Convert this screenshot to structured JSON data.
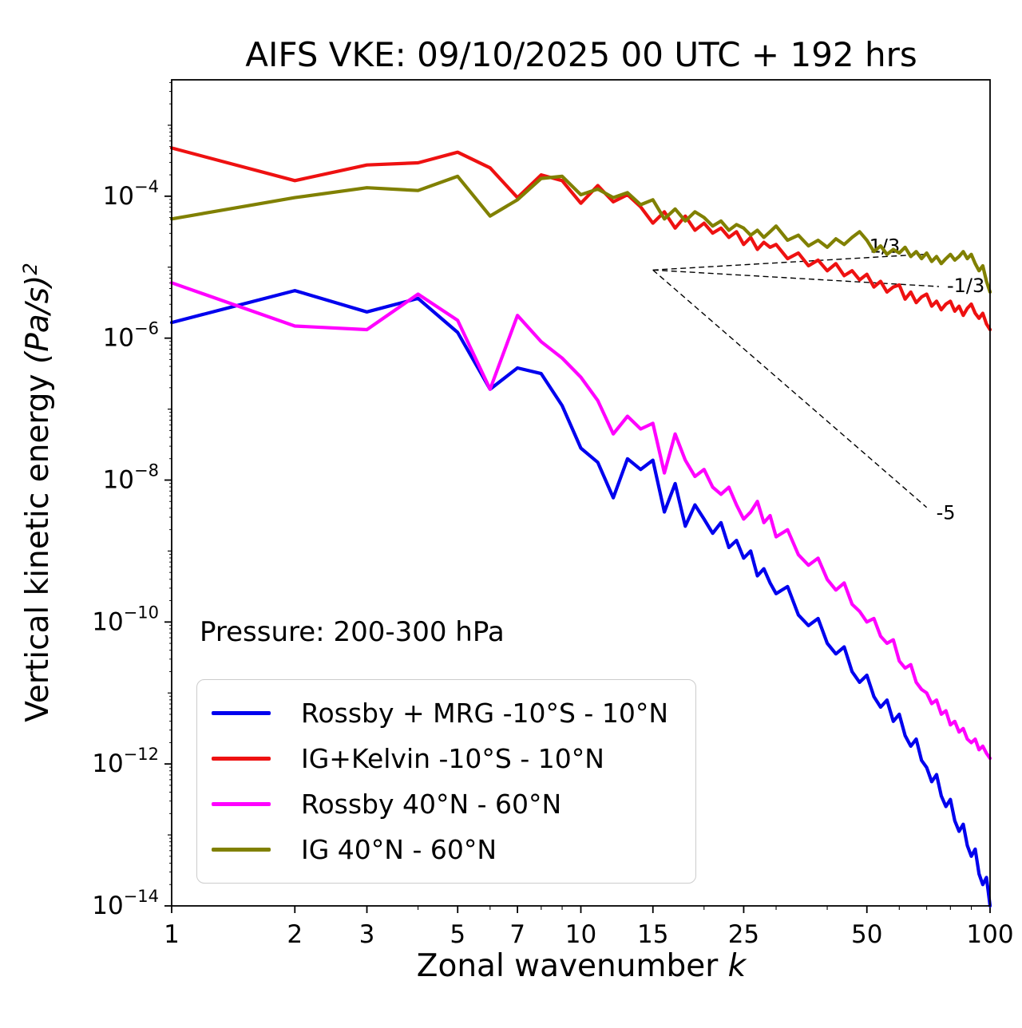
{
  "annotations": {
    "pressure": "Pressure: 200-300 hPa"
  },
  "chart_data": {
    "type": "line",
    "title": "AIFS VKE: 09/10/2025 00 UTC + 192 hrs",
    "xlabel": "Zonal wavenumber k",
    "xlabel_prefix": "Zonal wavenumber ",
    "xlabel_var": "k",
    "ylabel": "Vertical kinetic energy (Pa/s)^2",
    "ylabel_prefix": "Vertical kinetic energy ",
    "ylabel_units": "(Pa/s)",
    "ylabel_exponent": "2",
    "x_scale": "log",
    "y_scale": "log",
    "grid": false,
    "legend_position": "lower left",
    "xlim": [
      1,
      100
    ],
    "ylim_log10": [
      -14,
      -2.36
    ],
    "x_ticks": [
      1,
      2,
      3,
      5,
      7,
      10,
      15,
      25,
      50,
      100
    ],
    "y_ticks_log10": [
      -4,
      -6,
      -8,
      -10,
      -12,
      -14
    ],
    "k": [
      1,
      2,
      3,
      4,
      5,
      6,
      7,
      8,
      9,
      10,
      11,
      12,
      13,
      14,
      15,
      16,
      17,
      18,
      19,
      20,
      21,
      22,
      23,
      24,
      25,
      26,
      27,
      28,
      29,
      30,
      32,
      34,
      36,
      38,
      40,
      42,
      44,
      46,
      48,
      50,
      52,
      54,
      56,
      58,
      60,
      62,
      64,
      66,
      68,
      70,
      72,
      74,
      76,
      78,
      80,
      82,
      84,
      86,
      88,
      90,
      92,
      94,
      96,
      98,
      100
    ],
    "series": [
      {
        "key": "rossby-mrg-tropics",
        "name": "Rossby + MRG -10°S - 10°N",
        "color": "#0000ee",
        "log10_values": [
          -5.78,
          -5.33,
          -5.63,
          -5.44,
          -5.92,
          -6.72,
          -6.42,
          -6.5,
          -6.95,
          -7.55,
          -7.75,
          -8.25,
          -7.7,
          -7.85,
          -7.72,
          -8.45,
          -8.05,
          -8.65,
          -8.35,
          -8.55,
          -8.75,
          -8.6,
          -8.95,
          -8.85,
          -9.1,
          -9.0,
          -9.35,
          -9.25,
          -9.45,
          -9.6,
          -9.5,
          -9.9,
          -10.05,
          -9.95,
          -10.3,
          -10.45,
          -10.35,
          -10.7,
          -10.85,
          -10.75,
          -11.05,
          -11.2,
          -11.1,
          -11.4,
          -11.3,
          -11.6,
          -11.75,
          -11.65,
          -11.95,
          -12.05,
          -12.25,
          -12.15,
          -12.45,
          -12.6,
          -12.5,
          -12.8,
          -12.95,
          -12.85,
          -13.15,
          -13.3,
          -13.2,
          -13.55,
          -13.7,
          -13.6,
          -14.0
        ]
      },
      {
        "key": "ig-kelvin-tropics",
        "name": "IG+Kelvin -10°S - 10°N",
        "color": "#ee1111",
        "log10_values": [
          -3.32,
          -3.78,
          -3.56,
          -3.53,
          -3.38,
          -3.6,
          -4.02,
          -3.7,
          -3.78,
          -4.1,
          -3.85,
          -4.08,
          -3.98,
          -4.15,
          -4.38,
          -4.22,
          -4.45,
          -4.28,
          -4.48,
          -4.38,
          -4.52,
          -4.45,
          -4.58,
          -4.5,
          -4.68,
          -4.58,
          -4.75,
          -4.65,
          -4.72,
          -4.68,
          -4.88,
          -4.8,
          -4.98,
          -4.9,
          -5.05,
          -4.95,
          -5.12,
          -5.05,
          -5.18,
          -5.1,
          -5.28,
          -5.2,
          -5.35,
          -5.28,
          -5.25,
          -5.45,
          -5.35,
          -5.5,
          -5.42,
          -5.38,
          -5.55,
          -5.48,
          -5.6,
          -5.52,
          -5.48,
          -5.62,
          -5.55,
          -5.68,
          -5.58,
          -5.52,
          -5.65,
          -5.72,
          -5.65,
          -5.8,
          -5.88
        ]
      },
      {
        "key": "rossby-midlat",
        "name": "Rossby 40°N - 60°N",
        "color": "#ff00ff",
        "log10_values": [
          -5.22,
          -5.83,
          -5.88,
          -5.38,
          -5.75,
          -6.72,
          -5.68,
          -6.05,
          -6.28,
          -6.55,
          -6.88,
          -7.35,
          -7.1,
          -7.28,
          -7.2,
          -7.9,
          -7.35,
          -7.72,
          -7.95,
          -7.85,
          -8.1,
          -8.2,
          -8.1,
          -8.35,
          -8.55,
          -8.45,
          -8.3,
          -8.6,
          -8.5,
          -8.8,
          -8.7,
          -9.05,
          -9.2,
          -9.1,
          -9.4,
          -9.55,
          -9.45,
          -9.75,
          -9.85,
          -10.0,
          -9.95,
          -10.2,
          -10.3,
          -10.25,
          -10.55,
          -10.65,
          -10.6,
          -10.85,
          -10.95,
          -11.0,
          -11.15,
          -11.1,
          -11.3,
          -11.25,
          -11.45,
          -11.4,
          -11.55,
          -11.5,
          -11.65,
          -11.7,
          -11.65,
          -11.8,
          -11.75,
          -11.85,
          -11.92
        ]
      },
      {
        "key": "ig-midlat",
        "name": "IG 40°N - 60°N",
        "color": "#808000",
        "log10_values": [
          -4.32,
          -4.02,
          -3.88,
          -3.92,
          -3.72,
          -4.28,
          -4.05,
          -3.75,
          -3.72,
          -3.98,
          -3.9,
          -4.02,
          -3.95,
          -4.12,
          -4.05,
          -4.32,
          -4.18,
          -4.35,
          -4.22,
          -4.3,
          -4.42,
          -4.35,
          -4.48,
          -4.4,
          -4.45,
          -4.55,
          -4.48,
          -4.58,
          -4.5,
          -4.42,
          -4.62,
          -4.55,
          -4.7,
          -4.62,
          -4.72,
          -4.6,
          -4.68,
          -4.58,
          -4.5,
          -4.62,
          -4.78,
          -4.7,
          -4.82,
          -4.75,
          -4.8,
          -4.72,
          -4.85,
          -4.78,
          -4.88,
          -4.8,
          -4.92,
          -4.85,
          -4.95,
          -4.88,
          -4.82,
          -4.9,
          -4.85,
          -4.78,
          -4.88,
          -4.82,
          -4.95,
          -5.05,
          -4.98,
          -5.2,
          -5.35
        ]
      }
    ],
    "slope_guides": [
      {
        "label": "1/3",
        "k0": 15,
        "log10_v0": -5.04,
        "slope": 0.3333,
        "k1": 70,
        "label_dx": -72,
        "label_dy": -2
      },
      {
        "label": "-1/3",
        "k0": 15,
        "log10_v0": -5.04,
        "slope": -0.3333,
        "k1": 75,
        "label_dx": 10,
        "label_dy": 7
      },
      {
        "label": "-5",
        "k0": 15,
        "log10_v0": -5.04,
        "slope": -5,
        "k1": 70,
        "label_dx": 12,
        "label_dy": 15
      }
    ]
  }
}
